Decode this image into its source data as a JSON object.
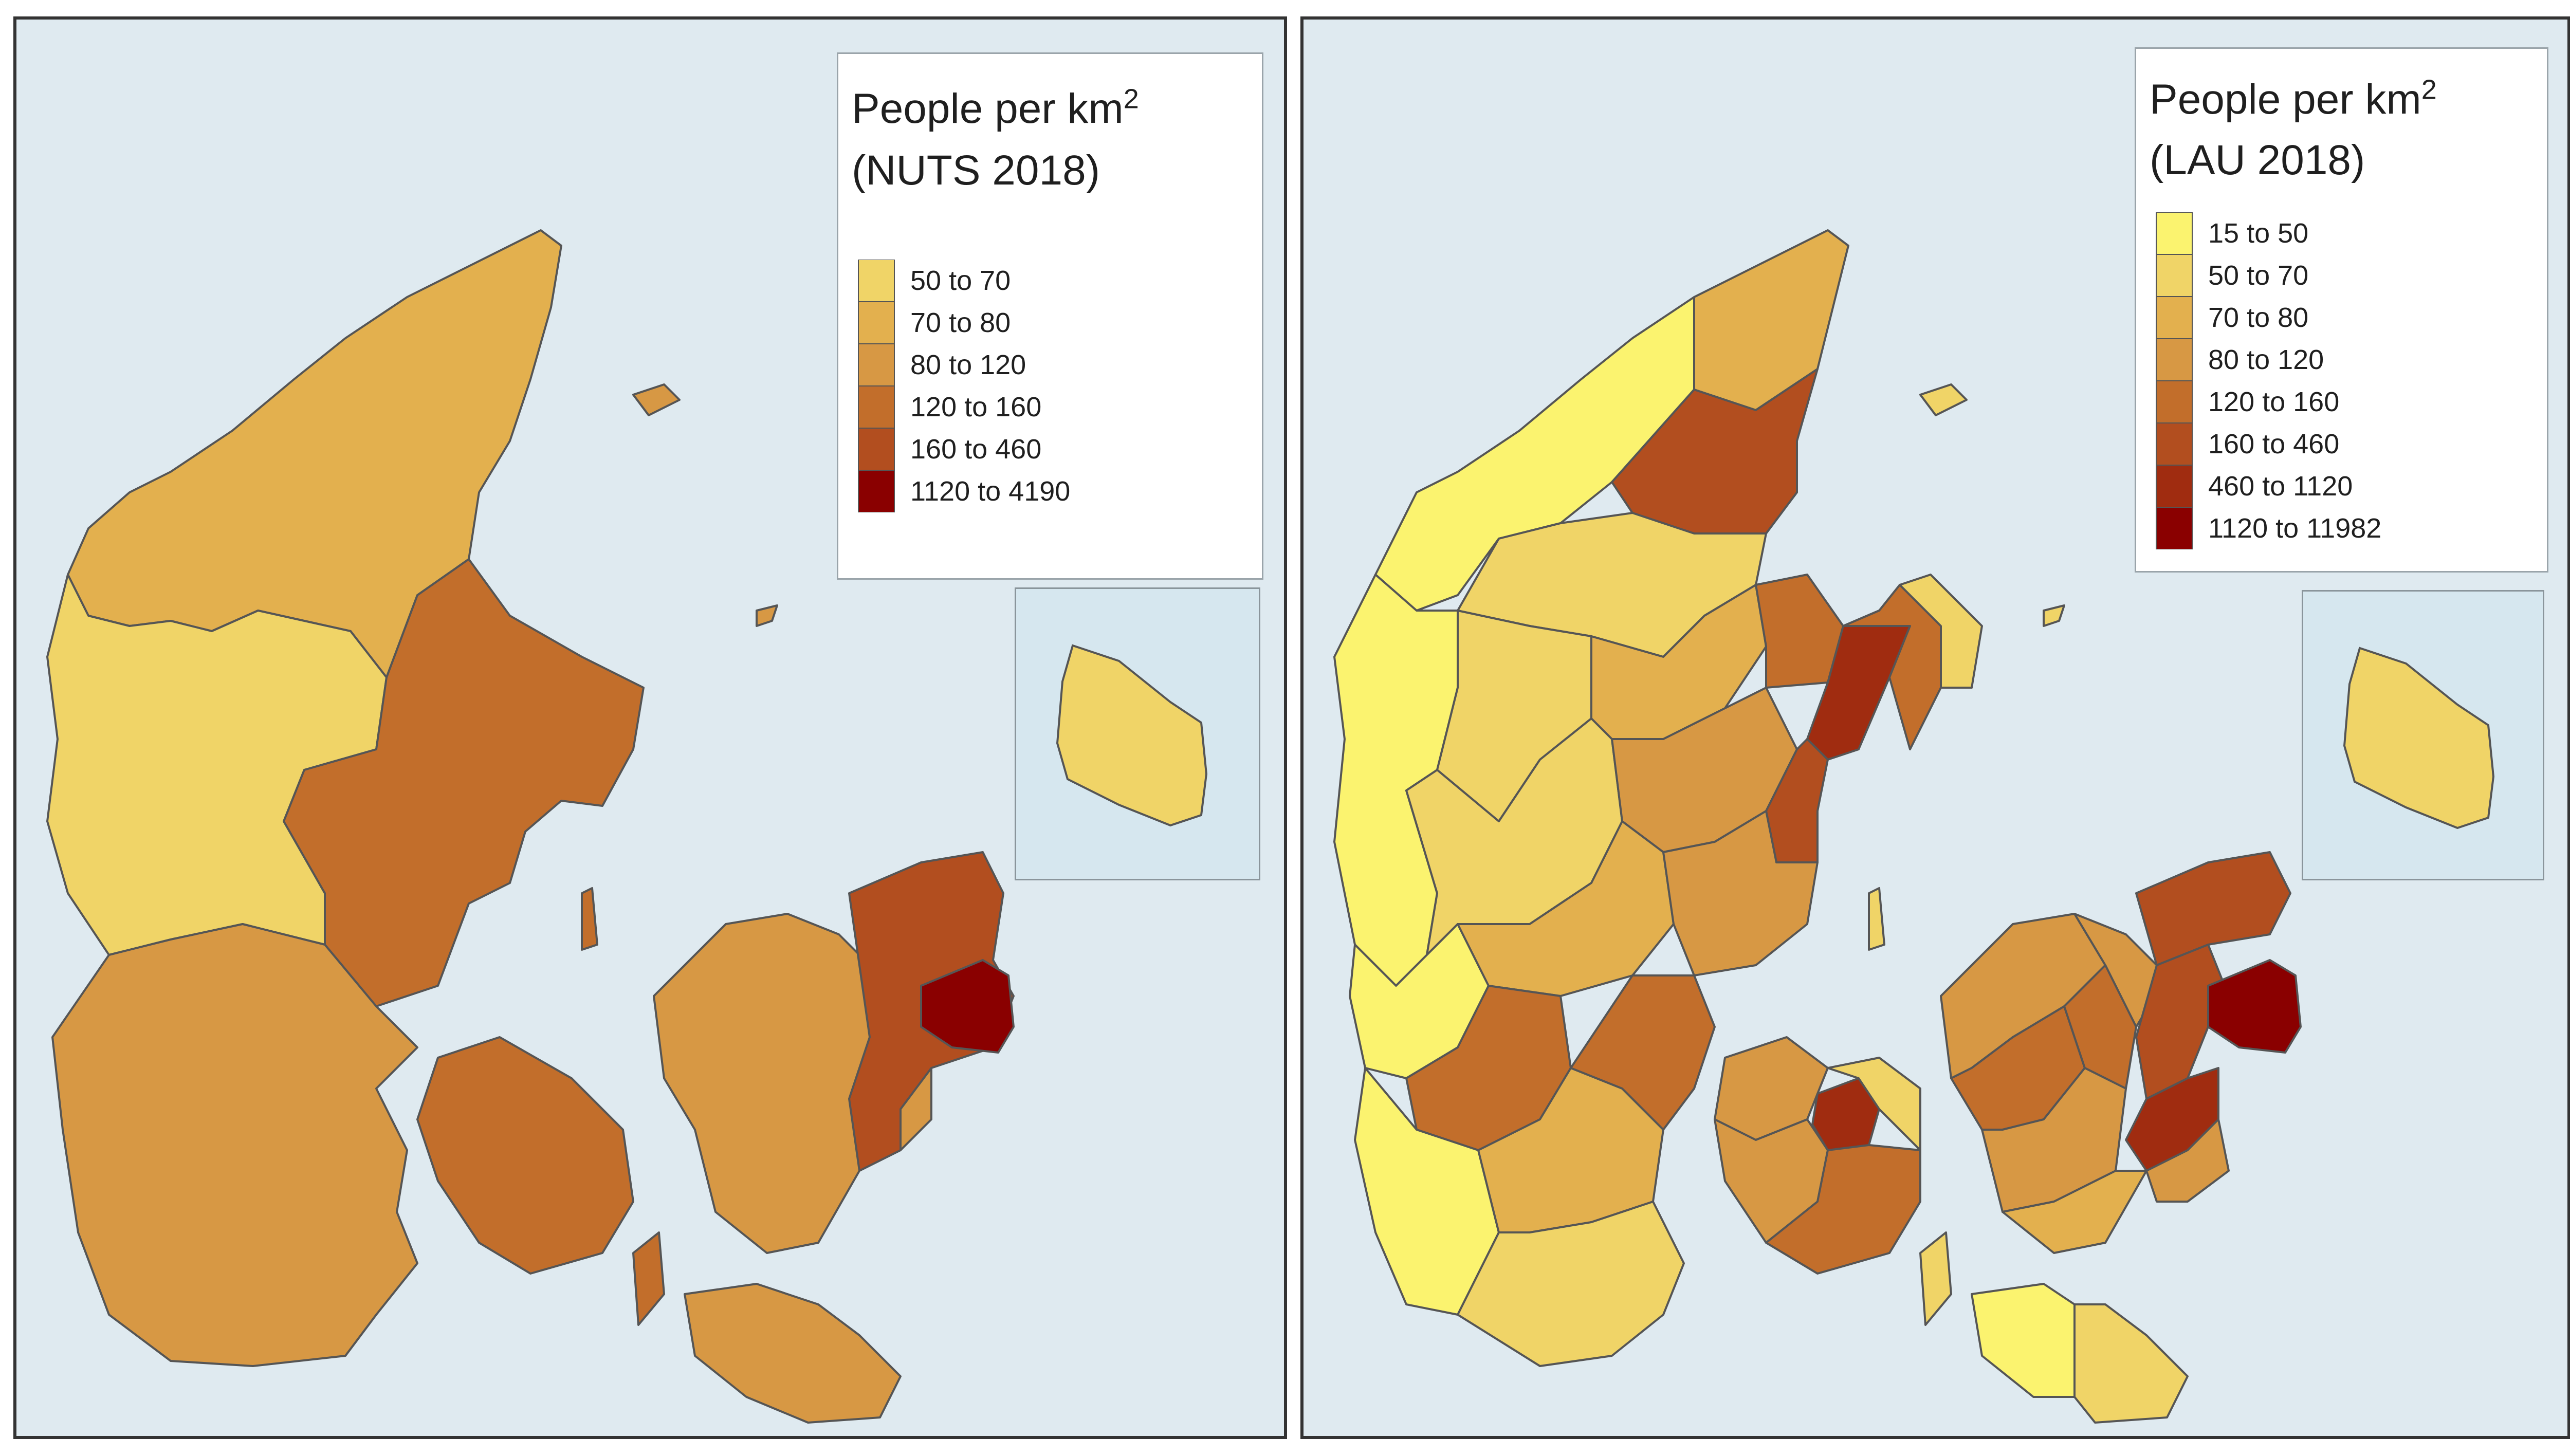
{
  "maps": [
    {
      "id": "nuts",
      "legend": {
        "title_main": "People per km",
        "title_sup": "2",
        "title_sub": "(NUTS 2018)",
        "items": [
          {
            "label": "50 to 70",
            "color": "#f0d467"
          },
          {
            "label": "70 to 80",
            "color": "#e3b04e"
          },
          {
            "label": "80 to 120",
            "color": "#d79844"
          },
          {
            "label": "120 to 160",
            "color": "#c26e2b"
          },
          {
            "label": "160 to 460",
            "color": "#b24e1f"
          },
          {
            "label": "1120 to 4190",
            "color": "#8a0000"
          }
        ]
      }
    },
    {
      "id": "lau",
      "legend": {
        "title_main": "People per km",
        "title_sup": "2",
        "title_sub": "(LAU 2018)",
        "items": [
          {
            "label": "15 to 50",
            "color": "#fbf36f"
          },
          {
            "label": "50 to 70",
            "color": "#f0d467"
          },
          {
            "label": "70 to 80",
            "color": "#e3b04e"
          },
          {
            "label": "80 to 120",
            "color": "#d79844"
          },
          {
            "label": "120 to 160",
            "color": "#c26e2b"
          },
          {
            "label": "160 to 460",
            "color": "#b24e1f"
          },
          {
            "label": "460 to 1120",
            "color": "#a02c10"
          },
          {
            "label": "1120 to 11982",
            "color": "#8a0000"
          }
        ]
      }
    }
  ],
  "colors": {
    "sea": "#dfeaf0",
    "inset_bg": "#d6e7ef",
    "border": "#555555"
  }
}
